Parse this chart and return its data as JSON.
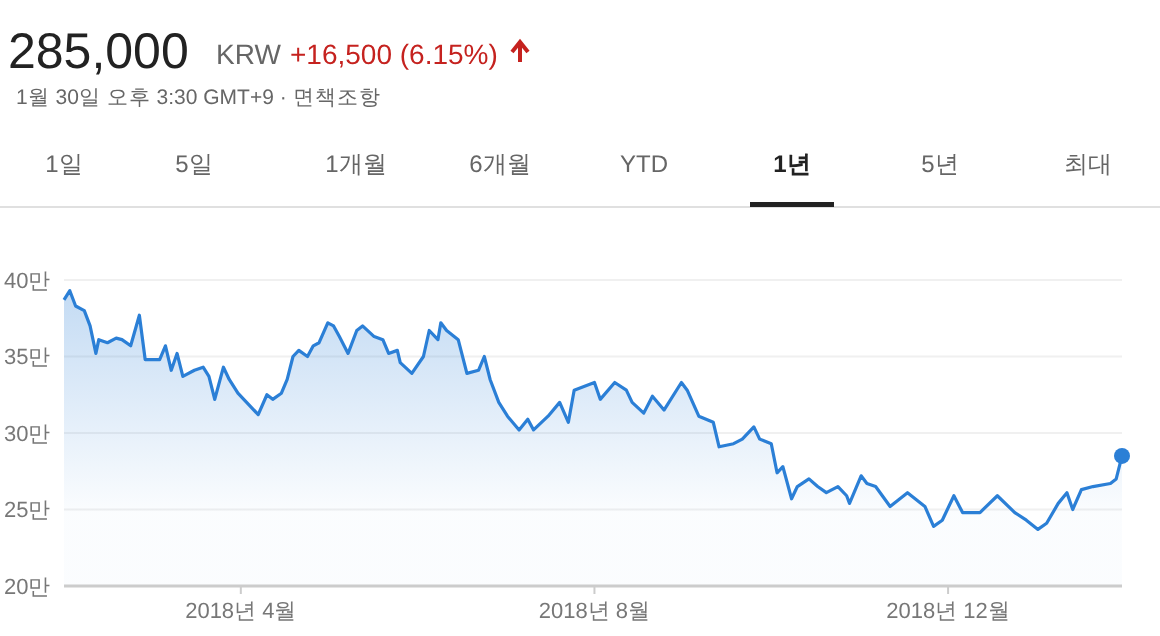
{
  "chart_data": {
    "type": "area",
    "title": "285,000",
    "subtitle": "1월 30일 오후 3:30 GMT+9 · 면책조항",
    "annotations": [
      "KRW",
      "+16,500 (6.15%)",
      "1일",
      "5일",
      "1개월",
      "6개월",
      "YTD",
      "1년",
      "5년",
      "최대"
    ],
    "x": [
      "2018-01-30",
      "2018-02-01",
      "2018-02-03",
      "2018-02-06",
      "2018-02-08",
      "2018-02-10",
      "2018-02-11",
      "2018-02-14",
      "2018-02-17",
      "2018-02-19",
      "2018-02-22",
      "2018-02-25",
      "2018-02-27",
      "2018-03-04",
      "2018-03-06",
      "2018-03-08",
      "2018-03-10",
      "2018-03-12",
      "2018-03-16",
      "2018-03-19",
      "2018-03-21",
      "2018-03-23",
      "2018-03-26",
      "2018-03-28",
      "2018-03-31",
      "2018-04-03",
      "2018-04-07",
      "2018-04-10",
      "2018-04-12",
      "2018-04-15",
      "2018-04-17",
      "2018-04-19",
      "2018-04-21",
      "2018-04-24",
      "2018-04-26",
      "2018-04-28",
      "2018-05-01",
      "2018-05-03",
      "2018-05-05",
      "2018-05-08",
      "2018-05-11",
      "2018-05-13",
      "2018-05-17",
      "2018-05-20",
      "2018-05-22",
      "2018-05-25",
      "2018-05-26",
      "2018-05-30",
      "2018-06-03",
      "2018-06-05",
      "2018-06-08",
      "2018-06-09",
      "2018-06-11",
      "2018-06-15",
      "2018-06-18",
      "2018-06-22",
      "2018-06-24",
      "2018-06-26",
      "2018-06-29",
      "2018-07-02",
      "2018-07-06",
      "2018-07-09",
      "2018-07-11",
      "2018-07-16",
      "2018-07-20",
      "2018-07-23",
      "2018-07-25",
      "2018-08-01",
      "2018-08-03",
      "2018-08-08",
      "2018-08-12",
      "2018-08-14",
      "2018-08-18",
      "2018-08-21",
      "2018-08-25",
      "2018-08-31",
      "2018-09-02",
      "2018-09-06",
      "2018-09-11",
      "2018-09-13",
      "2018-09-18",
      "2018-09-21",
      "2018-09-25",
      "2018-09-27",
      "2018-10-01",
      "2018-10-03",
      "2018-10-05",
      "2018-10-08",
      "2018-10-10",
      "2018-10-14",
      "2018-10-17",
      "2018-10-20",
      "2018-10-24",
      "2018-10-27",
      "2018-10-28",
      "2018-11-01",
      "2018-11-03",
      "2018-11-06",
      "2018-11-11",
      "2018-11-17",
      "2018-11-23",
      "2018-11-26",
      "2018-11-29",
      "2018-12-03",
      "2018-12-06",
      "2018-12-12",
      "2018-12-18",
      "2018-12-24",
      "2018-12-28",
      "2019-01-01",
      "2019-01-04",
      "2019-01-08",
      "2019-01-11",
      "2019-01-13",
      "2019-01-16",
      "2019-01-20",
      "2019-01-26",
      "2019-01-28",
      "2019-01-30"
    ],
    "series": [
      {
        "color": "#2b7fd6",
        "values": [
          38.7,
          39.3,
          38.3,
          38,
          37,
          35.2,
          36.1,
          35.9,
          36.2,
          36.1,
          35.7,
          37.7,
          34.8,
          34.8,
          35.7,
          34.1,
          35.2,
          33.7,
          34.1,
          34.3,
          33.7,
          32.2,
          34.3,
          33.5,
          32.6,
          32,
          31.2,
          32.5,
          32.2,
          32.6,
          33.5,
          35,
          35.4,
          35,
          35.7,
          35.9,
          37.2,
          37,
          36.3,
          35.2,
          36.7,
          37,
          36.3,
          36.1,
          35.2,
          35.4,
          34.6,
          33.9,
          35,
          36.7,
          36.1,
          37.2,
          36.7,
          36.1,
          33.9,
          34.1,
          35,
          33.5,
          32,
          31.1,
          30.2,
          30.9,
          30.2,
          31.1,
          32,
          30.7,
          32.8,
          33.3,
          32.2,
          33.3,
          32.8,
          32,
          31.3,
          32.4,
          31.5,
          33.3,
          32.8,
          31.1,
          30.7,
          29.1,
          29.3,
          29.6,
          30.4,
          29.6,
          29.3,
          27.4,
          27.8,
          25.7,
          26.5,
          27,
          26.5,
          26.1,
          26.5,
          25.9,
          25.4,
          27.2,
          26.7,
          26.5,
          25.2,
          26.1,
          25.2,
          23.9,
          24.3,
          25.9,
          24.8,
          24.8,
          25.9,
          24.8,
          24.3,
          23.7,
          24.1,
          25.4,
          26.1,
          25,
          26.3,
          26.5,
          26.7,
          27,
          28.5
        ]
      }
    ],
    "xlim": [
      "2018-01-30",
      "2019-01-30"
    ],
    "xticks": [
      {
        "value": "2018-04-01",
        "label": "2018년 4월"
      },
      {
        "value": "2018-08-01",
        "label": "2018년 8월"
      },
      {
        "value": "2018-12-01",
        "label": "2018년 12월"
      }
    ],
    "ylim": [
      20,
      40
    ],
    "yticks": [
      {
        "value": 20,
        "label": "20만"
      },
      {
        "value": 25,
        "label": "25만"
      },
      {
        "value": 30,
        "label": "30만"
      },
      {
        "value": 35,
        "label": "35만"
      },
      {
        "value": 40,
        "label": "40만"
      }
    ],
    "grid": "y",
    "marker": "none",
    "line_style": "solid"
  }
}
